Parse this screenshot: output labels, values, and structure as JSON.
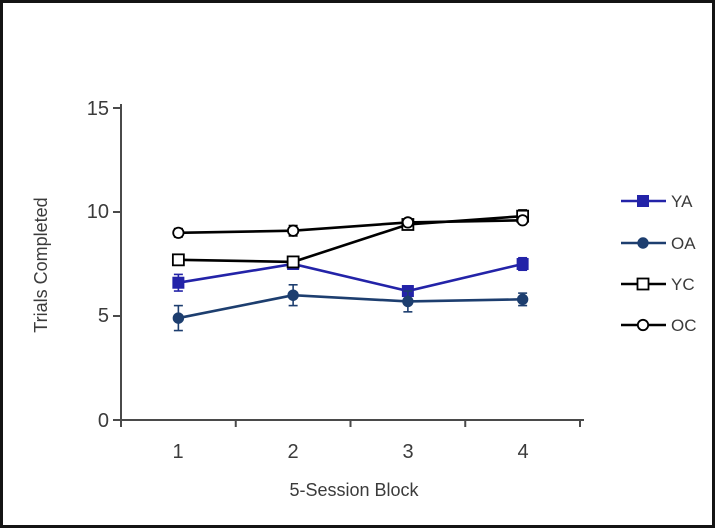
{
  "frame": {
    "background": "#ffffff",
    "border_color": "#141414"
  },
  "chart_data": {
    "type": "line",
    "title": "",
    "xlabel": "5-Session Block",
    "ylabel": "Trials Completed",
    "categories": [
      "1",
      "2",
      "3",
      "4"
    ],
    "ylim": [
      0,
      15
    ],
    "yticks": [
      0,
      5,
      10,
      15
    ],
    "ytick_labels_top_to_bottom": [
      "15",
      "10",
      "5",
      "0"
    ],
    "grid": false,
    "legend_position": "right",
    "error_bars": true,
    "axis_color": "#4a4a4a",
    "text_color": "#3b3b3b",
    "series": [
      {
        "name": "YA",
        "marker": "filled-square",
        "color": "#2323a8",
        "values": [
          6.6,
          7.5,
          6.2,
          7.5
        ],
        "errors": [
          0.4,
          0.2,
          0.25,
          0.3
        ]
      },
      {
        "name": "OA",
        "marker": "filled-circle",
        "color": "#1d3e6f",
        "values": [
          4.9,
          6.0,
          5.7,
          5.8
        ],
        "errors": [
          0.6,
          0.5,
          0.5,
          0.3
        ]
      },
      {
        "name": "YC",
        "marker": "open-square",
        "color": "#000000",
        "values": [
          7.7,
          7.6,
          9.4,
          9.8
        ],
        "errors": [
          0.2,
          0.2,
          0.2,
          0.3
        ]
      },
      {
        "name": "OC",
        "marker": "open-circle",
        "color": "#000000",
        "values": [
          9.0,
          9.1,
          9.5,
          9.6
        ],
        "errors": [
          0.2,
          0.25,
          0.15,
          0.1
        ]
      }
    ]
  }
}
